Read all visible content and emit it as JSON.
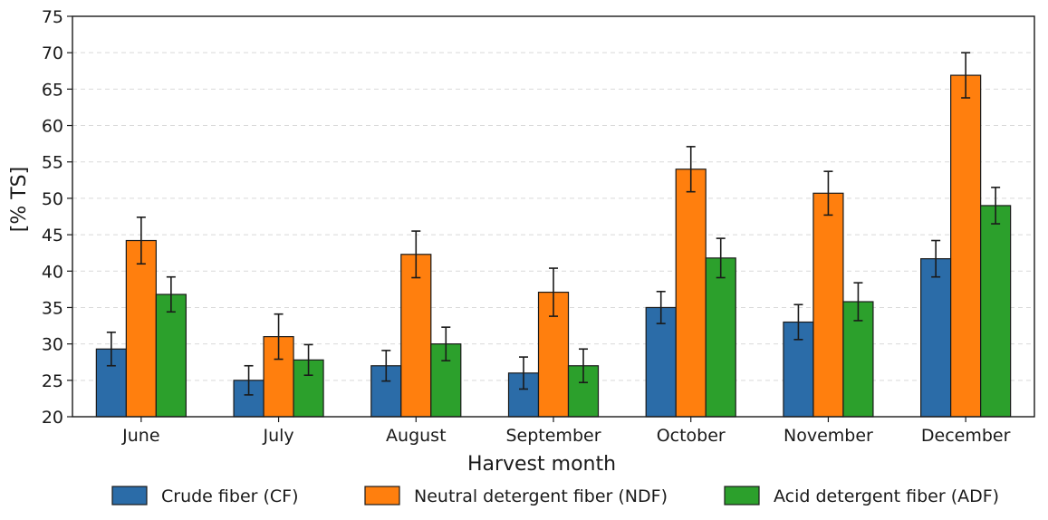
{
  "chart_data": {
    "type": "bar",
    "title": "",
    "xlabel": "Harvest month",
    "ylabel": "[% TS]",
    "ylim": [
      20,
      75
    ],
    "yticks": [
      20,
      25,
      30,
      35,
      40,
      45,
      50,
      55,
      60,
      65,
      70,
      75
    ],
    "grid": "horizontal dashed",
    "legend_position": "bottom",
    "categories": [
      "June",
      "July",
      "August",
      "September",
      "October",
      "November",
      "December"
    ],
    "series": [
      {
        "name": "Crude fiber (CF)",
        "color": "#2b6ca8",
        "values": [
          29.3,
          25.0,
          27.0,
          26.0,
          35.0,
          33.0,
          41.7
        ],
        "errors": [
          2.3,
          2.0,
          2.1,
          2.2,
          2.2,
          2.4,
          2.5
        ]
      },
      {
        "name": "Neutral detergent fiber (NDF)",
        "color": "#ff7f0e",
        "values": [
          44.2,
          31.0,
          42.3,
          37.1,
          54.0,
          50.7,
          66.9
        ],
        "errors": [
          3.2,
          3.1,
          3.2,
          3.3,
          3.1,
          3.0,
          3.1
        ]
      },
      {
        "name": "Acid detergent fiber (ADF)",
        "color": "#2ca02c",
        "values": [
          36.8,
          27.8,
          30.0,
          27.0,
          41.8,
          35.8,
          49.0
        ],
        "errors": [
          2.4,
          2.1,
          2.3,
          2.3,
          2.7,
          2.6,
          2.5
        ]
      }
    ]
  }
}
